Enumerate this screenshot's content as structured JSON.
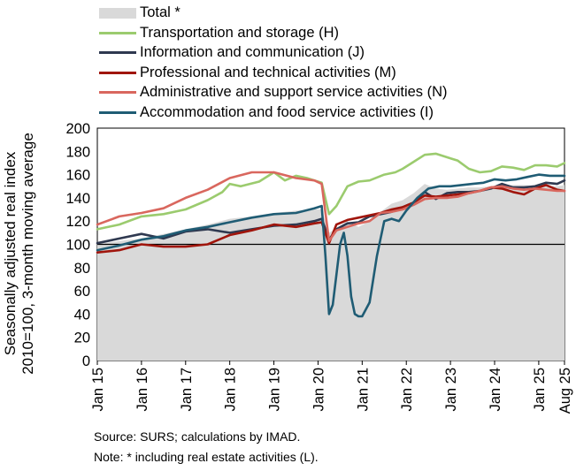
{
  "chart_data": {
    "type": "line",
    "ylabel_lines": [
      "Seasonally adjusted real index",
      "2010=100, 3-month moving average"
    ],
    "ylim": [
      0,
      200
    ],
    "yticks": [
      0,
      20,
      40,
      60,
      80,
      100,
      120,
      140,
      160,
      180,
      200
    ],
    "xlim": [
      "2015-01",
      "2025-08"
    ],
    "xticks": [
      "Jan 15",
      "Jan 16",
      "Jan 17",
      "Jan 18",
      "Jan 19",
      "Jan 20",
      "Jan 21",
      "Jan 22",
      "Jan 23",
      "Jan 24",
      "Jan 25",
      "Aug 25"
    ],
    "reference_line": 100,
    "legend_position": "top",
    "series": [
      {
        "name": "Total *",
        "style": "area",
        "color": "#d9d9d9",
        "points": [
          [
            "2015-01",
            100
          ],
          [
            "2015-07",
            103
          ],
          [
            "2016-01",
            105
          ],
          [
            "2016-07",
            109
          ],
          [
            "2017-01",
            113
          ],
          [
            "2017-07",
            117
          ],
          [
            "2018-01",
            122
          ],
          [
            "2018-07",
            124
          ],
          [
            "2019-01",
            127
          ],
          [
            "2019-07",
            129
          ],
          [
            "2019-12",
            130
          ],
          [
            "2020-02",
            130
          ],
          [
            "2020-04",
            110
          ],
          [
            "2020-06",
            114
          ],
          [
            "2020-09",
            120
          ],
          [
            "2020-12",
            115
          ],
          [
            "2021-03",
            120
          ],
          [
            "2021-06",
            128
          ],
          [
            "2021-09",
            135
          ],
          [
            "2021-12",
            138
          ],
          [
            "2022-03",
            144
          ],
          [
            "2022-06",
            152
          ],
          [
            "2022-09",
            148
          ],
          [
            "2022-12",
            147
          ],
          [
            "2023-03",
            148
          ],
          [
            "2023-06",
            149
          ],
          [
            "2023-09",
            149
          ],
          [
            "2023-12",
            150
          ],
          [
            "2024-03",
            151
          ],
          [
            "2024-06",
            151
          ],
          [
            "2024-09",
            151
          ],
          [
            "2024-12",
            150
          ],
          [
            "2025-03",
            150
          ],
          [
            "2025-06",
            150
          ],
          [
            "2025-08",
            151
          ]
        ]
      },
      {
        "name": "Transportation and storage (H)",
        "style": "line",
        "color": "#9bcb6e",
        "points": [
          [
            "2015-01",
            113
          ],
          [
            "2015-07",
            117
          ],
          [
            "2016-01",
            124
          ],
          [
            "2016-07",
            126
          ],
          [
            "2017-01",
            130
          ],
          [
            "2017-07",
            138
          ],
          [
            "2017-11",
            145
          ],
          [
            "2018-01",
            152
          ],
          [
            "2018-04",
            150
          ],
          [
            "2018-09",
            154
          ],
          [
            "2019-01",
            162
          ],
          [
            "2019-04",
            155
          ],
          [
            "2019-07",
            159
          ],
          [
            "2019-10",
            157
          ],
          [
            "2019-12",
            155
          ],
          [
            "2020-02",
            153
          ],
          [
            "2020-04",
            126
          ],
          [
            "2020-06",
            133
          ],
          [
            "2020-09",
            150
          ],
          [
            "2020-12",
            154
          ],
          [
            "2021-03",
            155
          ],
          [
            "2021-07",
            160
          ],
          [
            "2021-10",
            162
          ],
          [
            "2021-12",
            165
          ],
          [
            "2022-03",
            171
          ],
          [
            "2022-06",
            177
          ],
          [
            "2022-09",
            178
          ],
          [
            "2022-12",
            175
          ],
          [
            "2023-03",
            172
          ],
          [
            "2023-06",
            165
          ],
          [
            "2023-09",
            162
          ],
          [
            "2023-12",
            163
          ],
          [
            "2024-03",
            167
          ],
          [
            "2024-06",
            166
          ],
          [
            "2024-09",
            164
          ],
          [
            "2024-12",
            168
          ],
          [
            "2025-03",
            168
          ],
          [
            "2025-06",
            167
          ],
          [
            "2025-08",
            170
          ]
        ]
      },
      {
        "name": "Information and communication (J)",
        "style": "line",
        "color": "#2f3950",
        "points": [
          [
            "2015-01",
            101
          ],
          [
            "2015-07",
            105
          ],
          [
            "2016-01",
            109
          ],
          [
            "2016-07",
            105
          ],
          [
            "2017-01",
            111
          ],
          [
            "2017-07",
            113
          ],
          [
            "2018-01",
            110
          ],
          [
            "2018-07",
            113
          ],
          [
            "2019-01",
            116
          ],
          [
            "2019-07",
            117
          ],
          [
            "2019-12",
            120
          ],
          [
            "2020-02",
            122
          ],
          [
            "2020-04",
            104
          ],
          [
            "2020-06",
            113
          ],
          [
            "2020-09",
            118
          ],
          [
            "2020-12",
            119
          ],
          [
            "2021-03",
            124
          ],
          [
            "2021-06",
            126
          ],
          [
            "2021-09",
            128
          ],
          [
            "2021-12",
            132
          ],
          [
            "2022-03",
            136
          ],
          [
            "2022-06",
            145
          ],
          [
            "2022-09",
            139
          ],
          [
            "2022-12",
            144
          ],
          [
            "2023-03",
            145
          ],
          [
            "2023-06",
            145
          ],
          [
            "2023-09",
            146
          ],
          [
            "2023-12",
            148
          ],
          [
            "2024-03",
            152
          ],
          [
            "2024-06",
            149
          ],
          [
            "2024-09",
            149
          ],
          [
            "2024-12",
            150
          ],
          [
            "2025-03",
            153
          ],
          [
            "2025-06",
            152
          ],
          [
            "2025-08",
            155
          ]
        ]
      },
      {
        "name": "Professional and technical activities (M)",
        "style": "line",
        "color": "#a0150c",
        "points": [
          [
            "2015-01",
            93
          ],
          [
            "2015-07",
            95
          ],
          [
            "2016-01",
            100
          ],
          [
            "2016-07",
            98
          ],
          [
            "2017-01",
            98
          ],
          [
            "2017-07",
            100
          ],
          [
            "2018-01",
            108
          ],
          [
            "2018-07",
            112
          ],
          [
            "2019-01",
            117
          ],
          [
            "2019-07",
            115
          ],
          [
            "2019-12",
            118
          ],
          [
            "2020-02",
            119
          ],
          [
            "2020-04",
            101
          ],
          [
            "2020-06",
            117
          ],
          [
            "2020-09",
            121
          ],
          [
            "2020-12",
            123
          ],
          [
            "2021-03",
            125
          ],
          [
            "2021-06",
            127
          ],
          [
            "2021-09",
            130
          ],
          [
            "2021-12",
            132
          ],
          [
            "2022-03",
            136
          ],
          [
            "2022-06",
            142
          ],
          [
            "2022-09",
            141
          ],
          [
            "2022-12",
            142
          ],
          [
            "2023-03",
            143
          ],
          [
            "2023-06",
            144
          ],
          [
            "2023-09",
            146
          ],
          [
            "2023-12",
            149
          ],
          [
            "2024-03",
            148
          ],
          [
            "2024-06",
            145
          ],
          [
            "2024-09",
            143
          ],
          [
            "2024-12",
            148
          ],
          [
            "2025-03",
            151
          ],
          [
            "2025-06",
            147
          ],
          [
            "2025-08",
            146
          ]
        ]
      },
      {
        "name": "Administrative and support service activities (N)",
        "style": "line",
        "color": "#d9675e",
        "points": [
          [
            "2015-01",
            117
          ],
          [
            "2015-07",
            124
          ],
          [
            "2016-01",
            127
          ],
          [
            "2016-07",
            131
          ],
          [
            "2017-01",
            140
          ],
          [
            "2017-07",
            147
          ],
          [
            "2018-01",
            157
          ],
          [
            "2018-07",
            162
          ],
          [
            "2019-01",
            162
          ],
          [
            "2019-07",
            157
          ],
          [
            "2019-12",
            155
          ],
          [
            "2020-02",
            152
          ],
          [
            "2020-04",
            103
          ],
          [
            "2020-06",
            112
          ],
          [
            "2020-09",
            115
          ],
          [
            "2020-12",
            118
          ],
          [
            "2021-03",
            120
          ],
          [
            "2021-06",
            127
          ],
          [
            "2021-09",
            128
          ],
          [
            "2021-12",
            130
          ],
          [
            "2022-03",
            134
          ],
          [
            "2022-06",
            139
          ],
          [
            "2022-09",
            140
          ],
          [
            "2022-12",
            140
          ],
          [
            "2023-03",
            141
          ],
          [
            "2023-06",
            144
          ],
          [
            "2023-09",
            146
          ],
          [
            "2023-12",
            149
          ],
          [
            "2024-03",
            150
          ],
          [
            "2024-06",
            148
          ],
          [
            "2024-09",
            147
          ],
          [
            "2024-12",
            148
          ],
          [
            "2025-03",
            147
          ],
          [
            "2025-06",
            146
          ],
          [
            "2025-08",
            146
          ]
        ]
      },
      {
        "name": "Accommodation and food service activities (I)",
        "style": "line",
        "color": "#1f5c74",
        "points": [
          [
            "2015-01",
            95
          ],
          [
            "2015-07",
            99
          ],
          [
            "2016-01",
            104
          ],
          [
            "2016-07",
            107
          ],
          [
            "2017-01",
            112
          ],
          [
            "2017-07",
            115
          ],
          [
            "2018-01",
            119
          ],
          [
            "2018-07",
            123
          ],
          [
            "2019-01",
            126
          ],
          [
            "2019-07",
            127
          ],
          [
            "2019-12",
            131
          ],
          [
            "2020-02",
            133
          ],
          [
            "2020-03",
            90
          ],
          [
            "2020-04",
            40
          ],
          [
            "2020-05",
            48
          ],
          [
            "2020-07",
            100
          ],
          [
            "2020-08",
            110
          ],
          [
            "2020-09",
            90
          ],
          [
            "2020-10",
            55
          ],
          [
            "2020-11",
            40
          ],
          [
            "2020-12",
            38
          ],
          [
            "2021-01",
            38
          ],
          [
            "2021-03",
            50
          ],
          [
            "2021-05",
            90
          ],
          [
            "2021-07",
            120
          ],
          [
            "2021-09",
            122
          ],
          [
            "2021-11",
            120
          ],
          [
            "2022-01",
            129
          ],
          [
            "2022-04",
            140
          ],
          [
            "2022-07",
            148
          ],
          [
            "2022-10",
            150
          ],
          [
            "2023-01",
            150
          ],
          [
            "2023-04",
            151
          ],
          [
            "2023-07",
            152
          ],
          [
            "2023-10",
            153
          ],
          [
            "2024-01",
            156
          ],
          [
            "2024-04",
            155
          ],
          [
            "2024-07",
            156
          ],
          [
            "2024-10",
            158
          ],
          [
            "2025-01",
            160
          ],
          [
            "2025-04",
            159
          ],
          [
            "2025-08",
            159
          ]
        ]
      }
    ]
  },
  "footer": {
    "source": "Source:  SURS; calculations by IMAD.",
    "note": "Note: * including real estate activities (L)."
  }
}
